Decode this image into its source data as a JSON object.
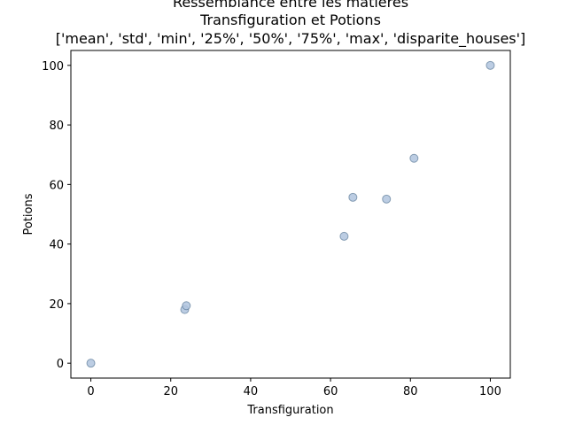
{
  "chart_data": {
    "type": "scatter",
    "title_lines": [
      "Ressemblance entre les matières",
      "Transfiguration et Potions",
      "['mean', 'std', 'min', '25%', '50%', '75%', 'max', 'disparite_houses']"
    ],
    "xlabel": "Transfiguration",
    "ylabel": "Potions",
    "xlim": [
      -5,
      105
    ],
    "ylim": [
      -5,
      105
    ],
    "xticks": [
      0,
      20,
      40,
      60,
      80,
      100
    ],
    "yticks": [
      0,
      20,
      40,
      60,
      80,
      100
    ],
    "points": [
      {
        "x": 0,
        "y": 0
      },
      {
        "x": 23.5,
        "y": 18.0
      },
      {
        "x": 23.9,
        "y": 19.3
      },
      {
        "x": 63.4,
        "y": 42.6
      },
      {
        "x": 65.6,
        "y": 55.7
      },
      {
        "x": 74.0,
        "y": 55.1
      },
      {
        "x": 80.9,
        "y": 68.8
      },
      {
        "x": 100,
        "y": 100
      }
    ],
    "marker_fill": "#b0c4de",
    "marker_stroke": "#4a6a8a",
    "grid": false
  }
}
